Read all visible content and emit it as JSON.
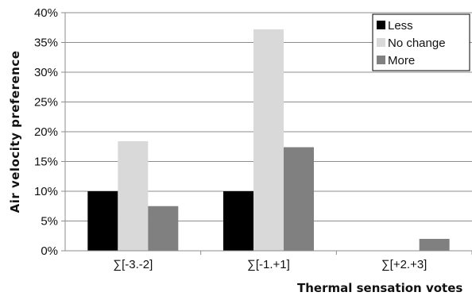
{
  "chart_data": {
    "type": "bar",
    "categories": [
      "∑[-3.-2]",
      "∑[-1.+1]",
      "∑[+2.+3]"
    ],
    "series": [
      {
        "name": "Less",
        "values": [
          10.0,
          10.0,
          0.0
        ],
        "color": "#000000"
      },
      {
        "name": "No change",
        "values": [
          18.4,
          37.2,
          0.0
        ],
        "color": "#d9d9d9"
      },
      {
        "name": "More",
        "values": [
          7.5,
          17.4,
          2.0
        ],
        "color": "#808080"
      }
    ],
    "title": "",
    "xlabel": "Thermal sensation votes",
    "ylabel": "Air velocity preference",
    "ylim": [
      0,
      40
    ],
    "yticks": [
      "0%",
      "5%",
      "10%",
      "15%",
      "20%",
      "25%",
      "30%",
      "35%",
      "40%"
    ],
    "grid": true,
    "legend_position": "top-right"
  }
}
